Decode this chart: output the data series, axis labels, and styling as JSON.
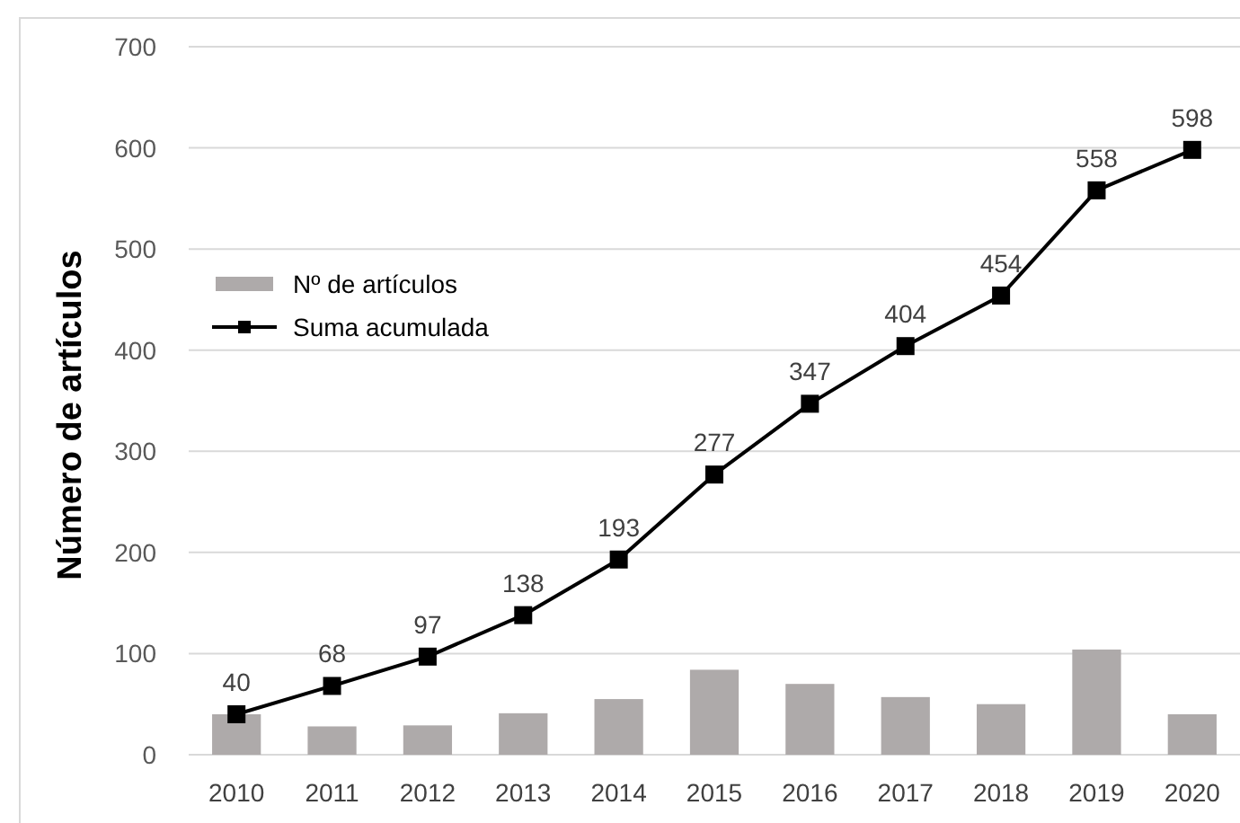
{
  "chart_data": {
    "type": "bar",
    "categories": [
      "2010",
      "2011",
      "2012",
      "2013",
      "2014",
      "2015",
      "2016",
      "2017",
      "2018",
      "2019",
      "2020"
    ],
    "ylabel": "Número de artículos",
    "ylim": [
      0,
      700
    ],
    "yticks": [
      0,
      100,
      200,
      300,
      400,
      500,
      600,
      700
    ],
    "grid": "y",
    "legend": "left",
    "series": [
      {
        "name": "Nº de artículos",
        "color": "#aeaaaa",
        "values": [
          40,
          28,
          29,
          41,
          55,
          84,
          70,
          57,
          50,
          104,
          40
        ]
      },
      {
        "name": "Suma acumulada",
        "type": "line",
        "color": "#000000",
        "marker": "square",
        "data_labels": true,
        "values": [
          40,
          68,
          97,
          138,
          193,
          277,
          347,
          404,
          454,
          558,
          598
        ]
      }
    ]
  }
}
